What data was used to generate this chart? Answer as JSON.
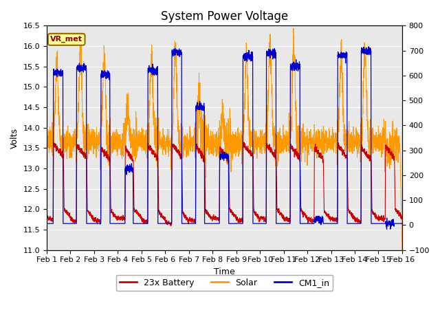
{
  "title": "System Power Voltage",
  "xlabel": "Time",
  "ylabel_left": "Volts",
  "ylim_left": [
    11.0,
    16.5
  ],
  "ylim_right": [
    -100,
    800
  ],
  "yticks_left": [
    11.0,
    11.5,
    12.0,
    12.5,
    13.0,
    13.5,
    14.0,
    14.5,
    15.0,
    15.5,
    16.0,
    16.5
  ],
  "yticks_right": [
    -100,
    0,
    100,
    200,
    300,
    400,
    500,
    600,
    700,
    800
  ],
  "xtick_labels": [
    "Feb 1",
    "Feb 2",
    "Feb 3",
    "Feb 4",
    "Feb 5",
    "Feb 6",
    "Feb 7",
    "Feb 8",
    "Feb 9",
    "Feb 10",
    "Feb 11",
    "Feb 12",
    "Feb 13",
    "Feb 14",
    "Feb 15",
    "Feb 16"
  ],
  "legend_labels": [
    "23x Battery",
    "Solar",
    "CM1_in"
  ],
  "legend_colors": [
    "#cc0000",
    "#ff9900",
    "#0000cc"
  ],
  "annotation_text": "VR_met",
  "annotation_bg": "#ffff99",
  "annotation_border": "#996600",
  "plot_bg": "#e8e8e8",
  "fig_bg": "#ffffff",
  "title_fontsize": 12,
  "axis_fontsize": 9,
  "tick_fontsize": 8,
  "days": 15,
  "pts_per_day": 200,
  "day_params": [
    {
      "batt_base": 11.8,
      "batt_peak": 13.6,
      "charge_s": 0.27,
      "charge_e": 0.7,
      "solar_peak": 15.65,
      "solar_noise": 0.15,
      "cm_s": 0.27,
      "cm_e": 0.68,
      "cm_peak": 15.35
    },
    {
      "batt_base": 11.75,
      "batt_peak": 13.55,
      "charge_s": 0.25,
      "charge_e": 0.68,
      "solar_peak": 15.85,
      "solar_noise": 0.18,
      "cm_s": 0.25,
      "cm_e": 0.67,
      "cm_peak": 15.45
    },
    {
      "batt_base": 11.75,
      "batt_peak": 13.5,
      "charge_s": 0.28,
      "charge_e": 0.67,
      "solar_peak": 15.75,
      "solar_noise": 0.2,
      "cm_s": 0.28,
      "cm_e": 0.66,
      "cm_peak": 15.3
    },
    {
      "batt_base": 11.8,
      "batt_peak": 13.5,
      "charge_s": 0.3,
      "charge_e": 0.65,
      "solar_peak": 14.4,
      "solar_noise": 0.25,
      "cm_s": 0.3,
      "cm_e": 0.64,
      "cm_peak": 13.0
    },
    {
      "batt_base": 11.75,
      "batt_peak": 13.55,
      "charge_s": 0.26,
      "charge_e": 0.69,
      "solar_peak": 15.72,
      "solar_noise": 0.2,
      "cm_s": 0.26,
      "cm_e": 0.68,
      "cm_peak": 15.4
    },
    {
      "batt_base": 11.7,
      "batt_peak": 13.6,
      "charge_s": 0.27,
      "charge_e": 0.7,
      "solar_peak": 15.95,
      "solar_noise": 0.18,
      "cm_s": 0.27,
      "cm_e": 0.69,
      "cm_peak": 15.85
    },
    {
      "batt_base": 11.75,
      "batt_peak": 13.55,
      "charge_s": 0.28,
      "charge_e": 0.66,
      "solar_peak": 14.65,
      "solar_noise": 0.3,
      "cm_s": 0.28,
      "cm_e": 0.65,
      "cm_peak": 14.5
    },
    {
      "batt_base": 11.8,
      "batt_peak": 13.5,
      "charge_s": 0.29,
      "charge_e": 0.68,
      "solar_peak": 14.3,
      "solar_noise": 0.25,
      "cm_s": 0.29,
      "cm_e": 0.67,
      "cm_peak": 13.3
    },
    {
      "batt_base": 11.75,
      "batt_peak": 13.6,
      "charge_s": 0.27,
      "charge_e": 0.7,
      "solar_peak": 15.78,
      "solar_noise": 0.15,
      "cm_s": 0.27,
      "cm_e": 0.69,
      "cm_peak": 15.75
    },
    {
      "batt_base": 11.8,
      "batt_peak": 13.58,
      "charge_s": 0.26,
      "charge_e": 0.68,
      "solar_peak": 16.1,
      "solar_noise": 0.18,
      "cm_s": 0.26,
      "cm_e": 0.67,
      "cm_peak": 15.82
    },
    {
      "batt_base": 11.78,
      "batt_peak": 13.55,
      "charge_s": 0.27,
      "charge_e": 0.69,
      "solar_peak": 15.88,
      "solar_noise": 0.2,
      "cm_s": 0.27,
      "cm_e": 0.68,
      "cm_peak": 15.5
    },
    {
      "batt_base": 11.75,
      "batt_peak": 13.52,
      "charge_s": 0.28,
      "charge_e": 0.67,
      "solar_peak": 13.6,
      "solar_noise": 0.15,
      "cm_s": 0.28,
      "cm_e": 0.66,
      "cm_peak": 11.75
    },
    {
      "batt_base": 11.78,
      "batt_peak": 13.56,
      "charge_s": 0.27,
      "charge_e": 0.68,
      "solar_peak": 15.78,
      "solar_noise": 0.18,
      "cm_s": 0.27,
      "cm_e": 0.67,
      "cm_peak": 15.78
    },
    {
      "batt_base": 11.75,
      "batt_peak": 13.5,
      "charge_s": 0.26,
      "charge_e": 0.69,
      "solar_peak": 15.88,
      "solar_noise": 0.2,
      "cm_s": 0.26,
      "cm_e": 0.68,
      "cm_peak": 15.88
    },
    {
      "batt_base": 11.8,
      "batt_peak": 13.55,
      "charge_s": 0.28,
      "charge_e": 0.67,
      "solar_peak": 13.3,
      "solar_noise": 0.25,
      "cm_s": 0.28,
      "cm_e": 0.66,
      "cm_peak": 11.65
    }
  ]
}
